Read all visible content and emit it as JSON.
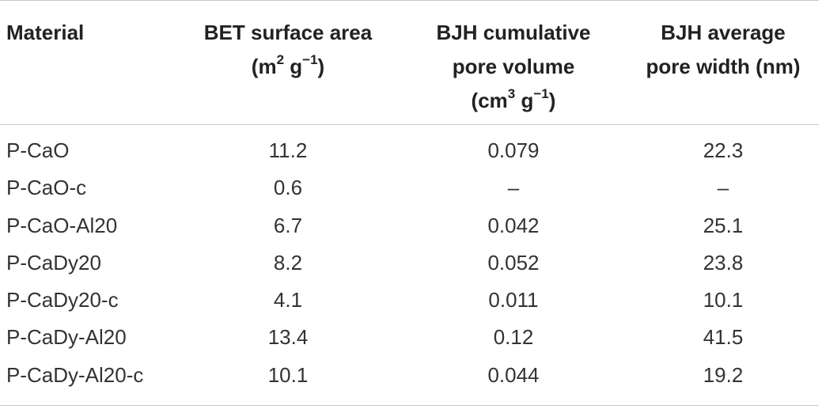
{
  "table": {
    "headers": {
      "material": "Material",
      "bet": {
        "line1": "BET surface area",
        "pre": "(m",
        "sup1": "2",
        "mid": " g",
        "sup2": "−1",
        "post": ")"
      },
      "volume": {
        "line1": "BJH cumulative",
        "line2": "pore volume",
        "pre": "(cm",
        "sup1": "3",
        "mid": " g",
        "sup2": "−1",
        "post": ")"
      },
      "width": {
        "line1": "BJH average",
        "line2": "pore width (nm)"
      }
    },
    "rows": [
      {
        "material": "P-CaO",
        "bet": "11.2",
        "volume": "0.079",
        "width": "22.3"
      },
      {
        "material": "P-CaO-c",
        "bet": "0.6",
        "volume": "–",
        "width": "–"
      },
      {
        "material": "P-CaO-Al20",
        "bet": "6.7",
        "volume": "0.042",
        "width": "25.1"
      },
      {
        "material": "P-CaDy20",
        "bet": "8.2",
        "volume": "0.052",
        "width": "23.8"
      },
      {
        "material": "P-CaDy20-c",
        "bet": "4.1",
        "volume": "0.011",
        "width": "10.1"
      },
      {
        "material": "P-CaDy-Al20",
        "bet": "13.4",
        "volume": "0.12",
        "width": "41.5"
      },
      {
        "material": "P-CaDy-Al20-c",
        "bet": "10.1",
        "volume": "0.044",
        "width": "19.2"
      }
    ]
  }
}
